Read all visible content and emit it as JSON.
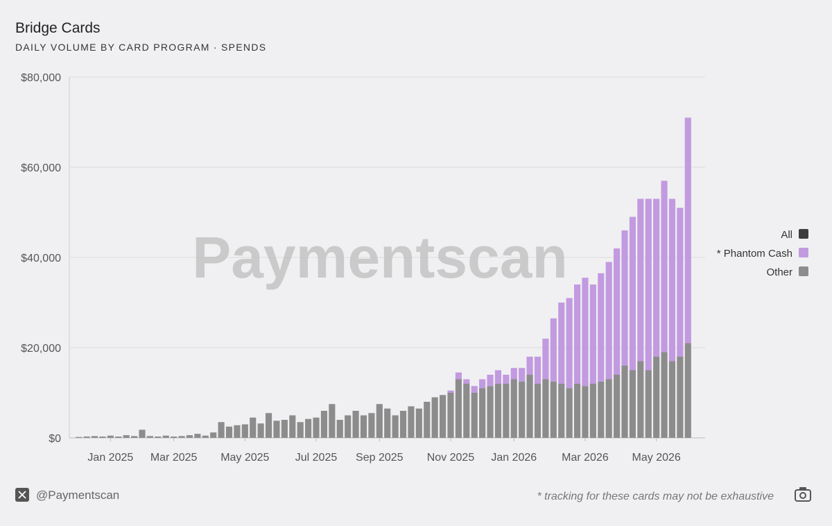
{
  "chart_data": {
    "type": "stacked-bar",
    "title": "Bridge Cards",
    "subtitle": "DAILY VOLUME BY CARD PROGRAM · SPENDS",
    "watermark": "Paymentscan",
    "footer_handle": "@Paymentscan",
    "footnote": "* tracking for these cards may not be exhaustive",
    "categories": [
      null,
      null,
      null,
      null,
      "Jan 2025",
      null,
      null,
      null,
      null,
      null,
      null,
      null,
      "Mar 2025",
      null,
      null,
      null,
      null,
      null,
      null,
      null,
      null,
      "May 2025",
      null,
      null,
      null,
      null,
      null,
      null,
      null,
      null,
      "Jul 2025",
      null,
      null,
      null,
      null,
      null,
      null,
      null,
      "Sep 2025",
      null,
      null,
      null,
      null,
      null,
      null,
      null,
      null,
      "Nov 2025",
      null,
      null,
      null,
      null,
      null,
      null,
      null,
      "Jan 2026",
      null,
      null,
      null,
      null,
      null,
      null,
      null,
      null,
      "Mar 2026",
      null,
      null,
      null,
      null,
      null,
      null,
      null,
      null,
      "May 2026",
      null,
      null,
      null,
      null
    ],
    "legend_total": {
      "name": "All",
      "color": "#3d3d3d"
    },
    "series": [
      {
        "name": "* Phantom Cash",
        "color": "#c29ae0",
        "values": [
          0,
          0,
          0,
          0,
          0,
          0,
          0,
          0,
          0,
          0,
          0,
          0,
          0,
          0,
          0,
          0,
          0,
          0,
          0,
          0,
          0,
          0,
          0,
          0,
          0,
          0,
          0,
          0,
          0,
          0,
          0,
          0,
          0,
          0,
          0,
          0,
          0,
          0,
          0,
          0,
          0,
          0,
          0,
          0,
          0,
          0,
          0,
          500,
          1500,
          1000,
          1500,
          2000,
          2500,
          3000,
          2000,
          2500,
          3000,
          4000,
          6000,
          9000,
          14000,
          18000,
          20000,
          22000,
          24000,
          22000,
          24000,
          26000,
          28000,
          30000,
          34000,
          36000,
          38000,
          35000,
          38000,
          36000,
          33000,
          50000
        ]
      },
      {
        "name": "Other",
        "color": "#8c8c8c",
        "values": [
          200,
          300,
          400,
          300,
          500,
          300,
          600,
          400,
          1800,
          400,
          300,
          500,
          300,
          400,
          600,
          900,
          500,
          1200,
          3500,
          2500,
          2800,
          3000,
          4500,
          3200,
          5500,
          3800,
          4000,
          5000,
          3500,
          4200,
          4500,
          6000,
          7500,
          4000,
          5000,
          6000,
          5000,
          5500,
          7500,
          6500,
          5000,
          6000,
          7000,
          6500,
          8000,
          9000,
          9500,
          10000,
          13000,
          12000,
          10000,
          11000,
          11500,
          12000,
          12000,
          13000,
          12500,
          14000,
          12000,
          13000,
          12500,
          12000,
          11000,
          12000,
          11500,
          12000,
          12500,
          13000,
          14000,
          16000,
          15000,
          17000,
          15000,
          18000,
          19000,
          17000,
          18000,
          21000
        ]
      }
    ],
    "ylim": [
      0,
      80000
    ],
    "yticks": [
      {
        "value": 0,
        "label": "$0"
      },
      {
        "value": 20000,
        "label": "$20,000"
      },
      {
        "value": 40000,
        "label": "$40,000"
      },
      {
        "value": 60000,
        "label": "$60,000"
      },
      {
        "value": 80000,
        "label": "$80,000"
      }
    ],
    "grid": true
  }
}
